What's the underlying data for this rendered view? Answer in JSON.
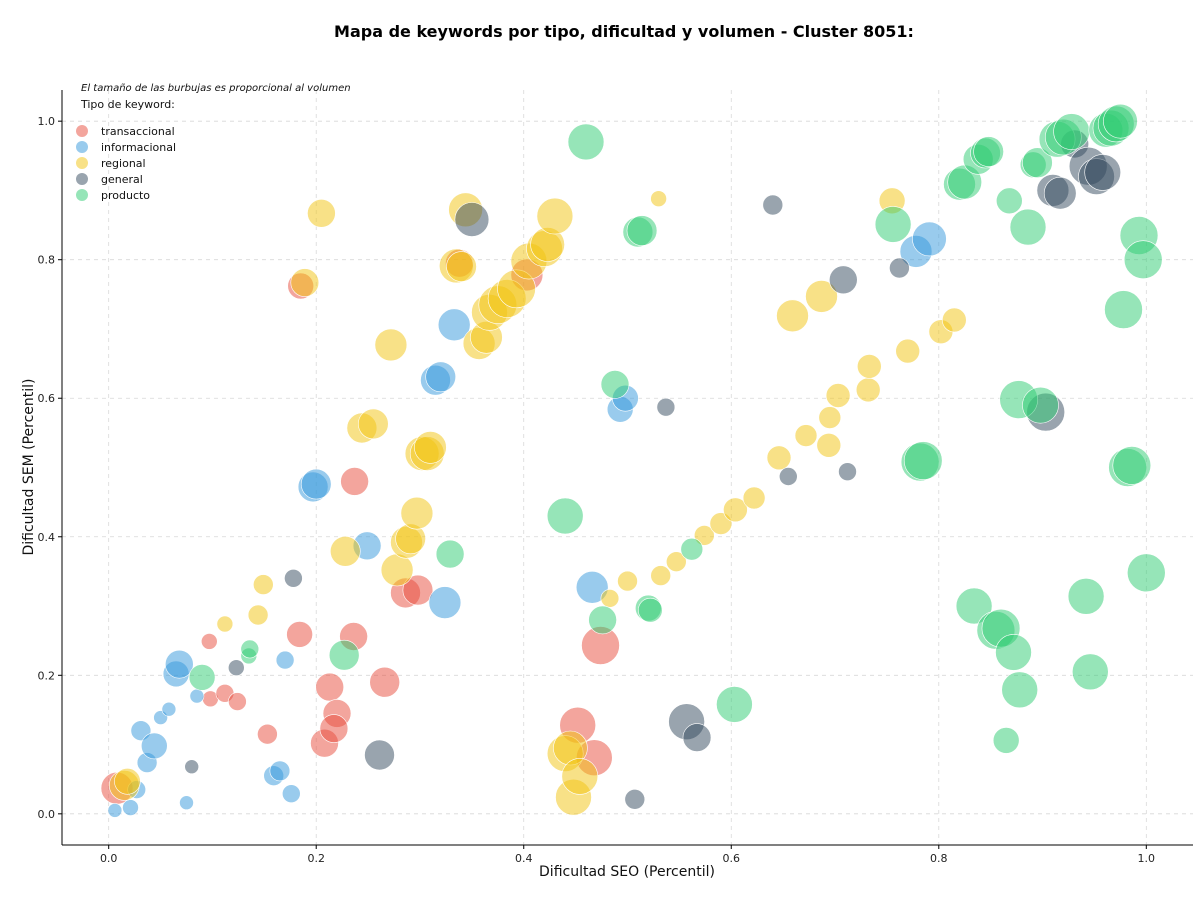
{
  "chart_data": {
    "type": "scatter",
    "title": "Mapa de keywords por tipo, dificultad y volumen - Cluster 8051:",
    "xlabel": "Dificultad SEO (Percentil)",
    "ylabel": "Dificultad SEM (Percentil)",
    "xlim": [
      -0.045,
      1.045
    ],
    "ylim": [
      -0.045,
      1.045
    ],
    "xticks": [
      "0.0",
      "0.2",
      "0.4",
      "0.6",
      "0.8",
      "1.0"
    ],
    "yticks": [
      "0.0",
      "0.2",
      "0.4",
      "0.6",
      "0.8",
      "1.0"
    ],
    "grid": true,
    "annotation": "El tamaño de las burbujas es proporcional al volumen",
    "legend_title": "Tipo de keyword:",
    "legend_position": "top-left",
    "series": [
      {
        "name": "transaccional",
        "color": "#e74c3c",
        "points": [
          {
            "x": 0.008,
            "y": 0.037,
            "s": 16
          },
          {
            "x": 0.097,
            "y": 0.249,
            "s": 8
          },
          {
            "x": 0.098,
            "y": 0.166,
            "s": 8
          },
          {
            "x": 0.112,
            "y": 0.174,
            "s": 9
          },
          {
            "x": 0.124,
            "y": 0.162,
            "s": 9
          },
          {
            "x": 0.153,
            "y": 0.115,
            "s": 10
          },
          {
            "x": 0.185,
            "y": 0.762,
            "s": 13
          },
          {
            "x": 0.184,
            "y": 0.259,
            "s": 13
          },
          {
            "x": 0.208,
            "y": 0.102,
            "s": 14
          },
          {
            "x": 0.213,
            "y": 0.183,
            "s": 14
          },
          {
            "x": 0.22,
            "y": 0.145,
            "s": 14
          },
          {
            "x": 0.217,
            "y": 0.123,
            "s": 14
          },
          {
            "x": 0.237,
            "y": 0.48,
            "s": 14
          },
          {
            "x": 0.236,
            "y": 0.256,
            "s": 14
          },
          {
            "x": 0.266,
            "y": 0.19,
            "s": 15
          },
          {
            "x": 0.286,
            "y": 0.319,
            "s": 15
          },
          {
            "x": 0.298,
            "y": 0.323,
            "s": 15
          },
          {
            "x": 0.338,
            "y": 0.795,
            "s": 14
          },
          {
            "x": 0.403,
            "y": 0.778,
            "s": 16
          },
          {
            "x": 0.452,
            "y": 0.128,
            "s": 18
          },
          {
            "x": 0.468,
            "y": 0.081,
            "s": 18
          },
          {
            "x": 0.474,
            "y": 0.243,
            "s": 19
          }
        ]
      },
      {
        "name": "informacional",
        "color": "#3498db",
        "points": [
          {
            "x": 0.006,
            "y": 0.005,
            "s": 7
          },
          {
            "x": 0.021,
            "y": 0.009,
            "s": 8
          },
          {
            "x": 0.027,
            "y": 0.035,
            "s": 9
          },
          {
            "x": 0.031,
            "y": 0.12,
            "s": 10
          },
          {
            "x": 0.037,
            "y": 0.074,
            "s": 10
          },
          {
            "x": 0.044,
            "y": 0.098,
            "s": 13
          },
          {
            "x": 0.05,
            "y": 0.139,
            "s": 7
          },
          {
            "x": 0.058,
            "y": 0.151,
            "s": 7
          },
          {
            "x": 0.065,
            "y": 0.202,
            "s": 13
          },
          {
            "x": 0.068,
            "y": 0.216,
            "s": 14
          },
          {
            "x": 0.075,
            "y": 0.016,
            "s": 7
          },
          {
            "x": 0.085,
            "y": 0.17,
            "s": 7
          },
          {
            "x": 0.159,
            "y": 0.055,
            "s": 10
          },
          {
            "x": 0.165,
            "y": 0.062,
            "s": 10
          },
          {
            "x": 0.17,
            "y": 0.222,
            "s": 9
          },
          {
            "x": 0.176,
            "y": 0.029,
            "s": 9
          },
          {
            "x": 0.197,
            "y": 0.472,
            "s": 15
          },
          {
            "x": 0.2,
            "y": 0.476,
            "s": 15
          },
          {
            "x": 0.249,
            "y": 0.387,
            "s": 14
          },
          {
            "x": 0.315,
            "y": 0.626,
            "s": 15
          },
          {
            "x": 0.32,
            "y": 0.631,
            "s": 15
          },
          {
            "x": 0.324,
            "y": 0.305,
            "s": 16
          },
          {
            "x": 0.333,
            "y": 0.706,
            "s": 16
          },
          {
            "x": 0.466,
            "y": 0.327,
            "s": 16
          },
          {
            "x": 0.493,
            "y": 0.584,
            "s": 13
          },
          {
            "x": 0.498,
            "y": 0.6,
            "s": 13
          },
          {
            "x": 0.778,
            "y": 0.812,
            "s": 16
          },
          {
            "x": 0.791,
            "y": 0.83,
            "s": 17
          }
        ]
      },
      {
        "name": "regional",
        "color": "#f1c40f",
        "points": [
          {
            "x": 0.015,
            "y": 0.041,
            "s": 15
          },
          {
            "x": 0.018,
            "y": 0.047,
            "s": 13
          },
          {
            "x": 0.112,
            "y": 0.274,
            "s": 8
          },
          {
            "x": 0.144,
            "y": 0.287,
            "s": 10
          },
          {
            "x": 0.149,
            "y": 0.331,
            "s": 10
          },
          {
            "x": 0.189,
            "y": 0.767,
            "s": 14
          },
          {
            "x": 0.205,
            "y": 0.867,
            "s": 14
          },
          {
            "x": 0.228,
            "y": 0.379,
            "s": 15
          },
          {
            "x": 0.244,
            "y": 0.557,
            "s": 15
          },
          {
            "x": 0.255,
            "y": 0.563,
            "s": 15
          },
          {
            "x": 0.272,
            "y": 0.677,
            "s": 16
          },
          {
            "x": 0.278,
            "y": 0.352,
            "s": 16
          },
          {
            "x": 0.287,
            "y": 0.392,
            "s": 16
          },
          {
            "x": 0.291,
            "y": 0.397,
            "s": 15
          },
          {
            "x": 0.297,
            "y": 0.434,
            "s": 16
          },
          {
            "x": 0.302,
            "y": 0.52,
            "s": 17
          },
          {
            "x": 0.307,
            "y": 0.52,
            "s": 17
          },
          {
            "x": 0.31,
            "y": 0.529,
            "s": 16
          },
          {
            "x": 0.335,
            "y": 0.791,
            "s": 17
          },
          {
            "x": 0.34,
            "y": 0.79,
            "s": 15
          },
          {
            "x": 0.344,
            "y": 0.872,
            "s": 17
          },
          {
            "x": 0.357,
            "y": 0.679,
            "s": 16
          },
          {
            "x": 0.364,
            "y": 0.688,
            "s": 16
          },
          {
            "x": 0.367,
            "y": 0.724,
            "s": 18
          },
          {
            "x": 0.375,
            "y": 0.735,
            "s": 19
          },
          {
            "x": 0.384,
            "y": 0.744,
            "s": 19
          },
          {
            "x": 0.393,
            "y": 0.758,
            "s": 19
          },
          {
            "x": 0.405,
            "y": 0.798,
            "s": 18
          },
          {
            "x": 0.42,
            "y": 0.816,
            "s": 18
          },
          {
            "x": 0.423,
            "y": 0.822,
            "s": 17
          },
          {
            "x": 0.43,
            "y": 0.863,
            "s": 18
          },
          {
            "x": 0.44,
            "y": 0.087,
            "s": 18
          },
          {
            "x": 0.445,
            "y": 0.095,
            "s": 17
          },
          {
            "x": 0.448,
            "y": 0.024,
            "s": 18
          },
          {
            "x": 0.454,
            "y": 0.054,
            "s": 18
          },
          {
            "x": 0.483,
            "y": 0.311,
            "s": 9
          },
          {
            "x": 0.5,
            "y": 0.336,
            "s": 10
          },
          {
            "x": 0.53,
            "y": 0.888,
            "s": 8
          },
          {
            "x": 0.532,
            "y": 0.344,
            "s": 10
          },
          {
            "x": 0.547,
            "y": 0.364,
            "s": 10
          },
          {
            "x": 0.574,
            "y": 0.402,
            "s": 10
          },
          {
            "x": 0.59,
            "y": 0.419,
            "s": 11
          },
          {
            "x": 0.604,
            "y": 0.439,
            "s": 12
          },
          {
            "x": 0.622,
            "y": 0.456,
            "s": 11
          },
          {
            "x": 0.646,
            "y": 0.514,
            "s": 12
          },
          {
            "x": 0.659,
            "y": 0.719,
            "s": 16
          },
          {
            "x": 0.672,
            "y": 0.546,
            "s": 11
          },
          {
            "x": 0.687,
            "y": 0.747,
            "s": 16
          },
          {
            "x": 0.694,
            "y": 0.532,
            "s": 12
          },
          {
            "x": 0.695,
            "y": 0.572,
            "s": 11
          },
          {
            "x": 0.703,
            "y": 0.604,
            "s": 12
          },
          {
            "x": 0.732,
            "y": 0.612,
            "s": 12
          },
          {
            "x": 0.733,
            "y": 0.646,
            "s": 12
          },
          {
            "x": 0.755,
            "y": 0.885,
            "s": 13
          },
          {
            "x": 0.77,
            "y": 0.668,
            "s": 12
          },
          {
            "x": 0.802,
            "y": 0.696,
            "s": 12
          },
          {
            "x": 0.815,
            "y": 0.713,
            "s": 12
          }
        ]
      },
      {
        "name": "general",
        "color": "#34495e",
        "points": [
          {
            "x": 0.08,
            "y": 0.068,
            "s": 7
          },
          {
            "x": 0.123,
            "y": 0.211,
            "s": 8
          },
          {
            "x": 0.178,
            "y": 0.34,
            "s": 9
          },
          {
            "x": 0.261,
            "y": 0.085,
            "s": 15
          },
          {
            "x": 0.35,
            "y": 0.858,
            "s": 17
          },
          {
            "x": 0.507,
            "y": 0.021,
            "s": 10
          },
          {
            "x": 0.537,
            "y": 0.587,
            "s": 9
          },
          {
            "x": 0.557,
            "y": 0.133,
            "s": 18
          },
          {
            "x": 0.567,
            "y": 0.11,
            "s": 14
          },
          {
            "x": 0.64,
            "y": 0.879,
            "s": 10
          },
          {
            "x": 0.655,
            "y": 0.487,
            "s": 9
          },
          {
            "x": 0.708,
            "y": 0.771,
            "s": 14
          },
          {
            "x": 0.712,
            "y": 0.494,
            "s": 9
          },
          {
            "x": 0.762,
            "y": 0.788,
            "s": 10
          },
          {
            "x": 0.903,
            "y": 0.58,
            "s": 19
          },
          {
            "x": 0.91,
            "y": 0.9,
            "s": 16
          },
          {
            "x": 0.917,
            "y": 0.896,
            "s": 16
          },
          {
            "x": 0.931,
            "y": 0.967,
            "s": 14
          },
          {
            "x": 0.944,
            "y": 0.935,
            "s": 19
          },
          {
            "x": 0.952,
            "y": 0.92,
            "s": 18
          },
          {
            "x": 0.958,
            "y": 0.926,
            "s": 18
          }
        ]
      },
      {
        "name": "producto",
        "color": "#2ecc71",
        "points": [
          {
            "x": 0.09,
            "y": 0.197,
            "s": 13
          },
          {
            "x": 0.135,
            "y": 0.228,
            "s": 8
          },
          {
            "x": 0.136,
            "y": 0.238,
            "s": 9
          },
          {
            "x": 0.227,
            "y": 0.229,
            "s": 15
          },
          {
            "x": 0.329,
            "y": 0.375,
            "s": 14
          },
          {
            "x": 0.44,
            "y": 0.43,
            "s": 18
          },
          {
            "x": 0.46,
            "y": 0.97,
            "s": 18
          },
          {
            "x": 0.476,
            "y": 0.28,
            "s": 14
          },
          {
            "x": 0.488,
            "y": 0.62,
            "s": 14
          },
          {
            "x": 0.52,
            "y": 0.297,
            "s": 13
          },
          {
            "x": 0.522,
            "y": 0.294,
            "s": 12
          },
          {
            "x": 0.51,
            "y": 0.84,
            "s": 15
          },
          {
            "x": 0.514,
            "y": 0.842,
            "s": 15
          },
          {
            "x": 0.562,
            "y": 0.382,
            "s": 11
          },
          {
            "x": 0.603,
            "y": 0.158,
            "s": 18
          },
          {
            "x": 0.756,
            "y": 0.851,
            "s": 18
          },
          {
            "x": 0.782,
            "y": 0.508,
            "s": 19
          },
          {
            "x": 0.785,
            "y": 0.51,
            "s": 19
          },
          {
            "x": 0.82,
            "y": 0.909,
            "s": 16
          },
          {
            "x": 0.825,
            "y": 0.912,
            "s": 17
          },
          {
            "x": 0.834,
            "y": 0.3,
            "s": 18
          },
          {
            "x": 0.838,
            "y": 0.945,
            "s": 15
          },
          {
            "x": 0.845,
            "y": 0.954,
            "s": 15
          },
          {
            "x": 0.848,
            "y": 0.956,
            "s": 15
          },
          {
            "x": 0.855,
            "y": 0.265,
            "s": 19
          },
          {
            "x": 0.86,
            "y": 0.268,
            "s": 19
          },
          {
            "x": 0.865,
            "y": 0.106,
            "s": 13
          },
          {
            "x": 0.868,
            "y": 0.885,
            "s": 13
          },
          {
            "x": 0.872,
            "y": 0.233,
            "s": 18
          },
          {
            "x": 0.877,
            "y": 0.598,
            "s": 19
          },
          {
            "x": 0.878,
            "y": 0.179,
            "s": 18
          },
          {
            "x": 0.886,
            "y": 0.847,
            "s": 18
          },
          {
            "x": 0.891,
            "y": 0.937,
            "s": 13
          },
          {
            "x": 0.895,
            "y": 0.94,
            "s": 15
          },
          {
            "x": 0.898,
            "y": 0.59,
            "s": 18
          },
          {
            "x": 0.914,
            "y": 0.974,
            "s": 18
          },
          {
            "x": 0.92,
            "y": 0.977,
            "s": 18
          },
          {
            "x": 0.928,
            "y": 0.985,
            "s": 18
          },
          {
            "x": 0.942,
            "y": 0.314,
            "s": 18
          },
          {
            "x": 0.946,
            "y": 0.205,
            "s": 18
          },
          {
            "x": 0.961,
            "y": 0.987,
            "s": 17
          },
          {
            "x": 0.966,
            "y": 0.99,
            "s": 18
          },
          {
            "x": 0.971,
            "y": 0.996,
            "s": 18
          },
          {
            "x": 0.975,
            "y": 1.0,
            "s": 17
          },
          {
            "x": 0.978,
            "y": 0.728,
            "s": 19
          },
          {
            "x": 0.982,
            "y": 0.5,
            "s": 19
          },
          {
            "x": 0.986,
            "y": 0.503,
            "s": 19
          },
          {
            "x": 0.993,
            "y": 0.835,
            "s": 19
          },
          {
            "x": 0.997,
            "y": 0.8,
            "s": 19
          },
          {
            "x": 1.0,
            "y": 0.348,
            "s": 19
          }
        ]
      }
    ]
  }
}
